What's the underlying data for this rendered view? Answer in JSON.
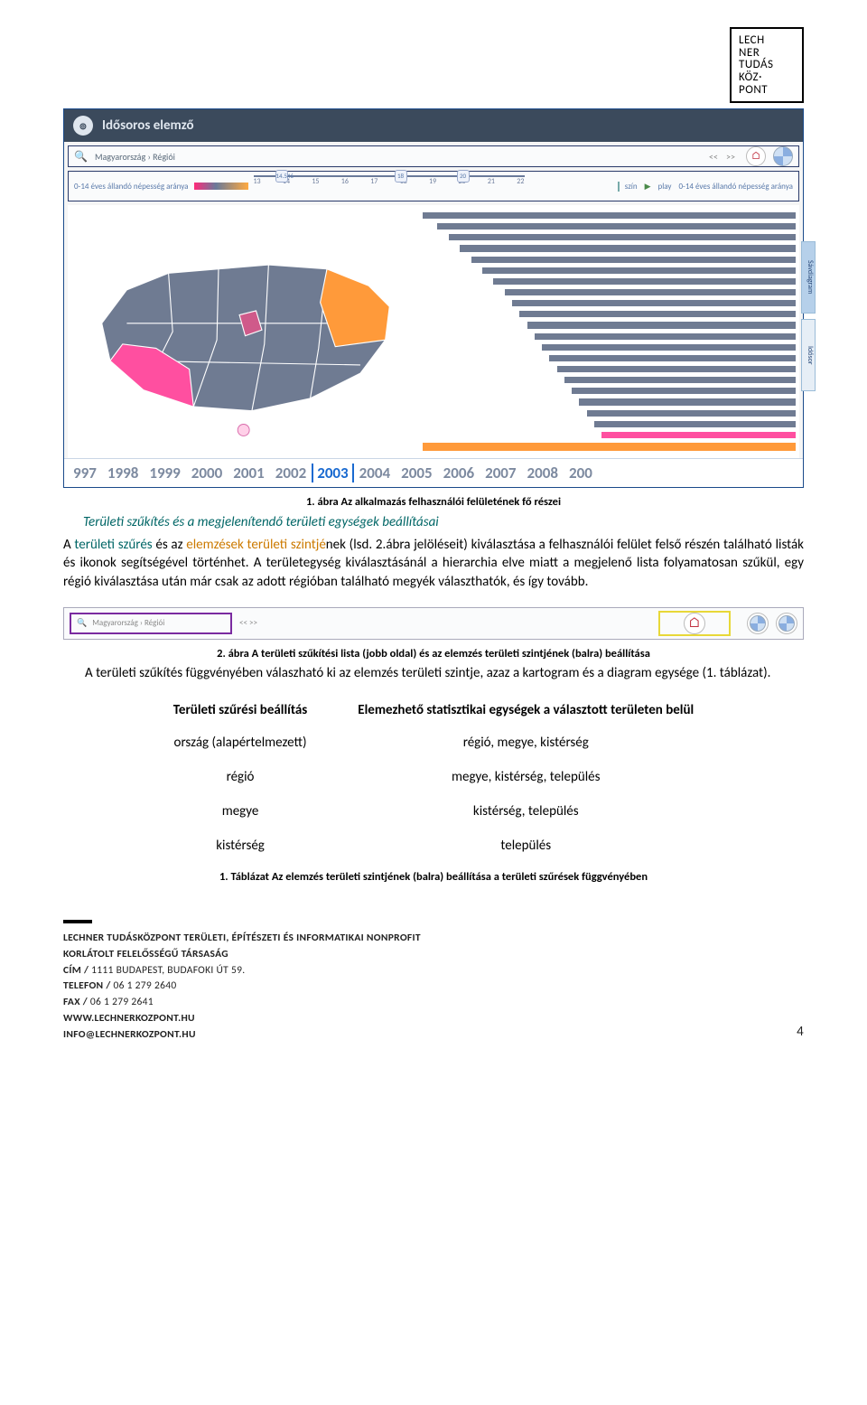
{
  "logo": {
    "line1": "LECH",
    "line2": "NER",
    "line3": "TUDÁS",
    "line4": "KÖZ·",
    "line5": "PONT"
  },
  "screenshot": {
    "title": "Idősoros elemző",
    "breadcrumb": "Magyarország  ›  Régiói",
    "nav_prev": "<<",
    "nav_next": ">>",
    "legend_left": "0-14 éves állandó népesség aránya",
    "ruler_ticks": [
      "13",
      "14",
      "15",
      "16",
      "17",
      "18",
      "19",
      "20",
      "21",
      "22"
    ],
    "ruler_knob_lo": "14.546",
    "ruler_knob_mid": "18",
    "ruler_knob_hi": "20",
    "legend_szin": "szín",
    "legend_play": "play",
    "legend_right": "0-14 éves állandó népesség aránya",
    "map_colors": {
      "base": "#6f7b92",
      "highlight_pink": "#ff4fa0",
      "highlight_orange": "#ff9a3a",
      "highlight_midpink": "#cf5a8a"
    },
    "bars": [
      100,
      96,
      93,
      90,
      87,
      84,
      81,
      78,
      76,
      74,
      72,
      70,
      68,
      66,
      64,
      62,
      60,
      58,
      56,
      54
    ],
    "bar_pink_index": 19,
    "bar_orange_index": 20,
    "side_tab_1": "Sávdiagram",
    "side_tab_2": "Idősor",
    "timeline_years": [
      "997",
      "1998",
      "1999",
      "2000",
      "2001",
      "2002",
      "2003",
      "2004",
      "2005",
      "2006",
      "2007",
      "2008",
      "200"
    ],
    "timeline_active": "2003"
  },
  "caption1": "1. ábra Az alkalmazás felhasználói felületének fő részei",
  "section_title": "Területi szűkítés és a megjelenítendő területi egységek beállításai",
  "para1_pre": "A ",
  "para1_hl1": "területi szűrés",
  "para1_mid1": " és az ",
  "para1_hl2": "elemzések területi szintjé",
  "para1_mid2": "nek (lsd. 2.ábra jelöléseit) kiválasztása a felhasználói felület felső részén található listák és ikonok segítségével történhet. A területegység kiválasztásánál a hierarchia elve miatt a megjelenő lista folyamatosan szűkül, egy régió kiválasztása után már csak az adott régióban található megyék választhatók, és így tovább.",
  "small_ss": {
    "breadcrumb": "Magyarország  ›  Régiói",
    "searchglyph": "🔍",
    "nav": "<<   >>",
    "home_glyph": "⌂"
  },
  "caption2": "2. ábra A területi szűkítési lista (jobb oldal) és az elemzés területi szintjének (balra) beállítása",
  "para2": "A területi szűkítés függvényében válaszható ki az elemzés területi szintje, azaz a kartogram és a diagram egysége (1. táblázat).",
  "table": {
    "header_left": "Területi szűrési beállítás",
    "header_right": "Elemezhető statisztikai egységek a választott területen belül",
    "rows": [
      [
        "ország (alapértelmezett)",
        "régió, megye, kistérség"
      ],
      [
        "régió",
        "megye, kistérség, település"
      ],
      [
        "megye",
        "kistérség, település"
      ],
      [
        "kistérség",
        "település"
      ]
    ]
  },
  "caption3": "1. Táblázat Az elemzés területi szintjének (balra) beállítása a területi szűrések függvényében",
  "footer": {
    "firm1": "LECHNER TUDÁSKÖZPONT TERÜLETI, ÉPÍTÉSZETI ÉS INFORMATIKAI NONPROFIT",
    "firm2": "KORLÁTOLT FELELŐSSÉGŰ TÁRSASÁG",
    "addr_label": "CÍM /",
    "addr": "1111 BUDAPEST, BUDAFOKI ÚT 59.",
    "tel_label": "TELEFON /",
    "tel": "06 1 279 2640",
    "fax_label": "FAX /",
    "fax": "06 1 279 2641",
    "web": "WWW.LECHNERKOZPONT.HU",
    "email": "INFO@LECHNERKOZPONT.HU",
    "page": "4"
  }
}
